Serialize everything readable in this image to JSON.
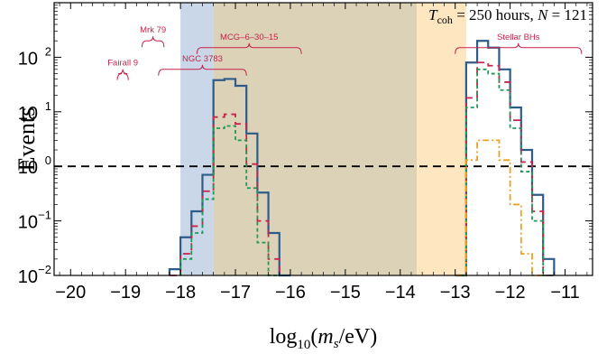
{
  "chart_data": {
    "type": "histogram",
    "annotation_text": "T_coh = 250 hours,  N = 121",
    "annotation": {
      "t": "T",
      "t_sub": "coh",
      "mid": " = 250 hours,  ",
      "n": "N",
      "n_val": " = 121"
    },
    "xlabel": "log10(ms/eV)",
    "xlabel_parts": {
      "log": "log",
      "sub10": "10",
      "lp": "(",
      "m": "m",
      "s": "s",
      "rest": "/eV)"
    },
    "ylabel": "Events",
    "x_scale": "linear",
    "y_scale": "log",
    "xlim": [
      -20.3,
      -10.5
    ],
    "ylim": [
      0.01,
      1000
    ],
    "x_ticks": [
      -20,
      -19,
      -18,
      -17,
      -16,
      -15,
      -14,
      -13,
      -12,
      -11
    ],
    "x_tick_labels": [
      "−20",
      "−19",
      "−18",
      "−17",
      "−16",
      "−15",
      "−14",
      "−13",
      "−12",
      "−11"
    ],
    "y_ticks": [
      {
        "value": 0.01,
        "base": "10",
        "exp": "−2"
      },
      {
        "value": 0.1,
        "base": "10",
        "exp": "−1"
      },
      {
        "value": 1,
        "base": "10",
        "exp": "0"
      },
      {
        "value": 10,
        "base": "10",
        "exp": "1"
      },
      {
        "value": 100,
        "base": "10",
        "exp": "2"
      }
    ],
    "threshold_line": {
      "y": 1,
      "style": "dashed",
      "color": "#000000"
    },
    "shaded_regions": [
      {
        "x0": -18.0,
        "x1": -17.4,
        "color": "#c9d7e8"
      },
      {
        "x0": -17.4,
        "x1": -13.7,
        "color": "#dcd2b8"
      },
      {
        "x0": -13.7,
        "x1": -12.8,
        "color": "#fde6c0"
      }
    ],
    "series": [
      {
        "color": "#2e5c8a",
        "style": "solid",
        "bin_width": 0.2,
        "segments": [
          {
            "x_start": -18.2,
            "values": [
              0.013,
              0.05,
              0.15,
              0.7,
              38,
              40,
              30,
              4,
              0.33,
              0.06,
              0.01
            ]
          },
          {
            "x_start": -13.0,
            "values": [
              0.01,
              80,
              200,
              150,
              60,
              12,
              2,
              0.3,
              0.02
            ]
          }
        ]
      },
      {
        "color": "#c8234b",
        "style": "dashed",
        "bin_width": 0.2,
        "segments": [
          {
            "x_start": -18.2,
            "values": [
              0.01,
              0.025,
              0.08,
              0.35,
              8,
              9,
              6,
              1.1,
              0.1,
              0.02
            ]
          },
          {
            "x_start": -13.0,
            "values": [
              0.01,
              18,
              80,
              70,
              35,
              7,
              1.2,
              0.15,
              0.01
            ]
          }
        ]
      },
      {
        "color": "#1e9a5a",
        "style": "dotted",
        "bin_width": 0.2,
        "segments": [
          {
            "x_start": -18.0,
            "values": [
              0.02,
              0.06,
              0.25,
              5,
              5.5,
              3,
              0.4,
              0.04,
              0.01
            ]
          },
          {
            "x_start": -13.0,
            "values": [
              0.01,
              12,
              60,
              50,
              25,
              5,
              0.8,
              0.1,
              0.01
            ]
          }
        ]
      },
      {
        "color": "#f0a020",
        "style": "dashdot",
        "bin_width": 0.2,
        "segments": [
          {
            "x_start": -13.0,
            "values": [
              0.01,
              1.3,
              3,
              3,
              1.3,
              0.2,
              0.025,
              0.01
            ]
          }
        ]
      }
    ],
    "source_labels": [
      {
        "name": "Fairall 9",
        "x0": -19.15,
        "x1": -18.95,
        "y": 50,
        "curly": true
      },
      {
        "name": "Mrk 79",
        "x0": -18.7,
        "x1": -18.3,
        "y": 200,
        "curly": true
      },
      {
        "name": "NGC 3783",
        "x0": -18.4,
        "x1": -16.8,
        "y": 60,
        "curly": true
      },
      {
        "name": "MCG–6–30–15",
        "x0": -17.7,
        "x1": -15.8,
        "y": 150,
        "curly": true
      },
      {
        "name": "Stellar BHs",
        "x0": -13.0,
        "x1": -10.7,
        "y": 150,
        "curly": true
      }
    ],
    "label_color": "#c8234b"
  }
}
